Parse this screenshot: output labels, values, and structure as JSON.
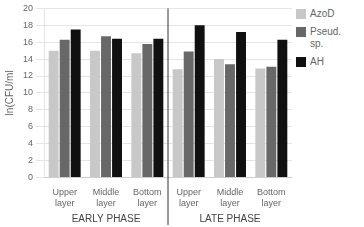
{
  "chart_data": {
    "type": "bar",
    "categories": [
      "Upper\nlayer",
      "Middle\nlayer",
      "Bottom\nlayer",
      "Upper\nlayer",
      "Middle\nlayer",
      "Bottom\nlayer"
    ],
    "series": [
      {
        "name": "AzoD",
        "color": "#c8c8c8",
        "values": [
          15.0,
          15.0,
          14.7,
          12.8,
          14.0,
          12.9
        ]
      },
      {
        "name": "Pseud.\nsp.",
        "color": "#686868",
        "values": [
          16.3,
          16.7,
          15.8,
          14.9,
          13.4,
          13.1
        ]
      },
      {
        "name": "AH",
        "color": "#101010",
        "values": [
          17.5,
          16.4,
          16.4,
          18.0,
          17.2,
          16.3
        ]
      }
    ],
    "ylabel": "ln(CFU/ml",
    "ylim": [
      0,
      20
    ],
    "yticks": [
      0,
      2,
      4,
      6,
      8,
      10,
      12,
      14,
      16,
      18,
      20
    ],
    "grid": true,
    "legend": "upper right",
    "annotations": [
      "EARLY PHASE",
      "LATE PHASE"
    ]
  }
}
